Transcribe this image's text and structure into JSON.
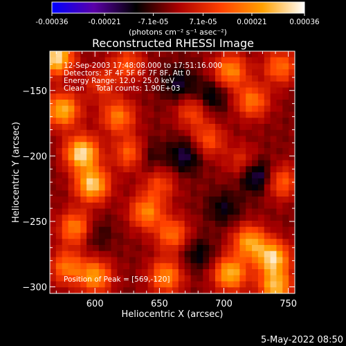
{
  "colorbar": {
    "ticks": [
      "-0.00036",
      "-0.00021",
      "-7.1e-05",
      "7.1e-05",
      "0.00021",
      "0.00036"
    ],
    "tick_values": [
      -0.00036,
      -0.00021,
      -7.1e-05,
      7.1e-05,
      0.00021,
      0.00036
    ],
    "range": [
      -0.00036,
      0.00036
    ],
    "unit_label": "(photons cm⁻² s⁻¹ asec⁻²)",
    "colors": [
      "#0000ff",
      "#5b00a8",
      "#000000",
      "#aa0000",
      "#ff4000",
      "#ffa000",
      "#ffffff"
    ]
  },
  "annotations": {
    "time_range": "12-Sep-2003 17:48:08.000 to 17:51:16.000",
    "detectors": "Detectors: 3F 4F 5F 6F 7F 8F, Att 0",
    "energy": "Energy Range: 12.0 - 25.0 keV",
    "method": "Clean     Total counts: 1.90E+03",
    "peak": "Position of Peak = [569,-120]"
  },
  "footer": {
    "timestamp": "5-May-2022 08:50"
  },
  "chart_data": {
    "type": "heatmap",
    "title": "Reconstructed RHESSI Image",
    "xlabel": "Heliocentric X (arcsec)",
    "ylabel": "Heliocentric Y (arcsec)",
    "xlim": [
      565,
      755
    ],
    "ylim": [
      -305,
      -120
    ],
    "xticks": [
      600,
      650,
      700,
      750
    ],
    "yticks": [
      -150,
      -200,
      -250,
      -300
    ],
    "xtick_labels": [
      "600",
      "650",
      "700",
      "750"
    ],
    "ytick_labels": [
      "−150",
      "−200",
      "−250",
      "−300"
    ],
    "peak_position": [
      569,
      -120
    ],
    "blobs": [
      {
        "x": 570,
        "y": -125,
        "value": 0.00036
      },
      {
        "x": 575,
        "y": -165,
        "value": 0.0003
      },
      {
        "x": 590,
        "y": -198,
        "value": 0.00036
      },
      {
        "x": 598,
        "y": -222,
        "value": 0.00033
      },
      {
        "x": 585,
        "y": -255,
        "value": 0.00024
      },
      {
        "x": 578,
        "y": -285,
        "value": 0.00021
      },
      {
        "x": 600,
        "y": -292,
        "value": 0.00026
      },
      {
        "x": 618,
        "y": -170,
        "value": 0.00022
      },
      {
        "x": 628,
        "y": -198,
        "value": 0.00021
      },
      {
        "x": 640,
        "y": -243,
        "value": 0.00023
      },
      {
        "x": 650,
        "y": -222,
        "value": 0.00014
      },
      {
        "x": 660,
        "y": -260,
        "value": 0.0002
      },
      {
        "x": 655,
        "y": -292,
        "value": 0.00024
      },
      {
        "x": 676,
        "y": -166,
        "value": 0.00015
      },
      {
        "x": 688,
        "y": -188,
        "value": 0.00016
      },
      {
        "x": 705,
        "y": -135,
        "value": 0.00024
      },
      {
        "x": 722,
        "y": -158,
        "value": 0.00021
      },
      {
        "x": 744,
        "y": -132,
        "value": 0.0002
      },
      {
        "x": 715,
        "y": -205,
        "value": 0.00012
      },
      {
        "x": 745,
        "y": -220,
        "value": 0.00018
      },
      {
        "x": 720,
        "y": -266,
        "value": 0.00027
      },
      {
        "x": 738,
        "y": -278,
        "value": 0.00033
      },
      {
        "x": 705,
        "y": -290,
        "value": 0.0003
      },
      {
        "x": 740,
        "y": -300,
        "value": 0.0003
      },
      {
        "x": 625,
        "y": -130,
        "value": 0.00016
      },
      {
        "x": 605,
        "y": -145,
        "value": 0.00012
      },
      {
        "x": 665,
        "y": -145,
        "value": -0.00012
      },
      {
        "x": 700,
        "y": -240,
        "value": -0.0001
      },
      {
        "x": 725,
        "y": -215,
        "value": -0.00018
      },
      {
        "x": 640,
        "y": -200,
        "value": -0.0001
      },
      {
        "x": 670,
        "y": -200,
        "value": -0.00014
      },
      {
        "x": 600,
        "y": -260,
        "value": -8e-05
      },
      {
        "x": 680,
        "y": -275,
        "value": -0.0001
      },
      {
        "x": 690,
        "y": -155,
        "value": -0.00012
      }
    ]
  }
}
